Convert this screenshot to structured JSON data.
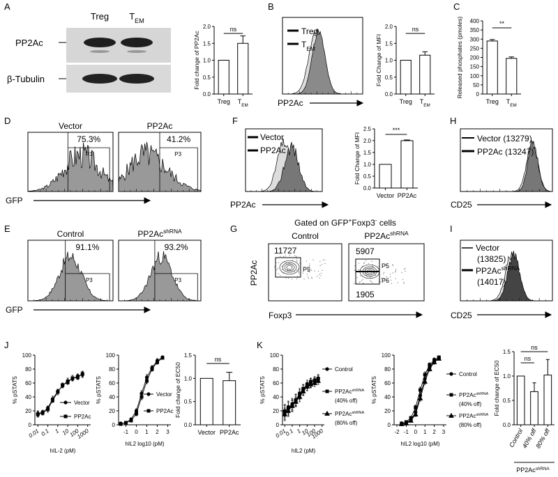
{
  "figure": {
    "A": {
      "letter": "A",
      "lanes": [
        "Treg",
        [
          "T",
          {
            "sub": "EM"
          }
        ]
      ],
      "bands": [
        "PP2Ac",
        "β-Tubulin"
      ],
      "chart": {
        "type": "bar",
        "ylabel": "Fold change of PP2Ac",
        "categories": [
          "Treg",
          [
            "T",
            {
              "sub": "EM"
            }
          ]
        ],
        "values": [
          1.0,
          1.5
        ],
        "errors": [
          null,
          0.22
        ],
        "ylim": [
          0,
          2
        ],
        "yticks": [
          {
            "value": 0,
            "label": "0.0"
          },
          {
            "value": 0.5,
            "label": "0.5"
          },
          {
            "value": 1,
            "label": "1.0"
          },
          {
            "value": 1.5,
            "label": "1.5"
          },
          {
            "value": 2,
            "label": "2.0"
          }
        ],
        "annotations": [
          "ns"
        ]
      }
    },
    "B": {
      "letter": "B",
      "legend": [
        "Treg",
        [
          "T",
          {
            "sub": "EM"
          }
        ]
      ],
      "xlabel": "PP2Ac",
      "chart": {
        "type": "bar",
        "ylabel": "Fold Change of MFI",
        "categories": [
          "Treg",
          [
            "T",
            {
              "sub": "EM"
            }
          ]
        ],
        "values": [
          1.0,
          1.15
        ],
        "errors": [
          null,
          0.1
        ],
        "ylim": [
          0,
          2
        ],
        "yticks": [
          {
            "value": 0,
            "label": "0.0"
          },
          {
            "value": 0.5,
            "label": "0.5"
          },
          {
            "value": 1,
            "label": "1.0"
          },
          {
            "value": 1.5,
            "label": "1.5"
          },
          {
            "value": 2,
            "label": "2.0"
          }
        ],
        "annotations": [
          "ns"
        ]
      }
    },
    "C": {
      "letter": "C",
      "chart": {
        "type": "bar",
        "ylabel": "Released phosphates (pmoles)",
        "categories": [
          "Treg",
          [
            "T",
            {
              "sub": "EM"
            }
          ]
        ],
        "values": [
          290,
          195
        ],
        "errors": [
          8,
          8
        ],
        "ylim": [
          0,
          400
        ],
        "yticks": [
          0,
          50,
          100,
          150,
          200,
          250,
          300,
          350,
          400
        ],
        "annotations": [
          "**"
        ]
      }
    },
    "D": {
      "letter": "D",
      "xlabel": "GFP",
      "plots": [
        {
          "title": "Vector",
          "percent": "75.3%",
          "gate": "P3"
        },
        {
          "title": "PP2Ac",
          "percent": "41.2%",
          "gate": "P3"
        }
      ]
    },
    "E": {
      "letter": "E",
      "xlabel": "GFP",
      "plots": [
        {
          "title": "Control",
          "percent": "91.1%",
          "gate": "P3"
        },
        {
          "title": [
            "PP2Ac",
            {
              "sup": "shRNA"
            }
          ],
          "percent": "93.2%",
          "gate": "P3"
        }
      ]
    },
    "F": {
      "letter": "F",
      "legend": [
        "Vector",
        "PP2Ac"
      ],
      "xlabel": "PP2Ac",
      "chart": {
        "type": "bar",
        "ylabel": "Fold Change of MFI",
        "categories": [
          "Vector",
          "PP2Ac"
        ],
        "values": [
          1.0,
          2.0
        ],
        "errors": [
          null,
          0.03
        ],
        "ylim": [
          0,
          2.5
        ],
        "yticks": [
          {
            "value": 0,
            "label": "0.0"
          },
          {
            "value": 0.5,
            "label": "0.5"
          },
          {
            "value": 1,
            "label": "1.0"
          },
          {
            "value": 1.5,
            "label": "1.5"
          },
          {
            "value": 2,
            "label": "2.0"
          },
          {
            "value": 2.5,
            "label": "2.5"
          }
        ],
        "annotations": [
          "***"
        ]
      }
    },
    "G": {
      "letter": "G",
      "title": [
        "Gated on GFP",
        {
          "sup": "+"
        },
        "Foxp3",
        {
          "sup": "-"
        },
        " cells"
      ],
      "ylabel": "PP2Ac",
      "xlabel": "Foxp3",
      "plots": [
        {
          "title": "Control",
          "counts": [
            11727
          ],
          "gates": [
            "P5"
          ]
        },
        {
          "title": [
            "PP2Ac",
            {
              "sup": "shRNA"
            }
          ],
          "counts": [
            5907,
            1905
          ],
          "gates": [
            "P5",
            "P6"
          ]
        }
      ]
    },
    "H": {
      "letter": "H",
      "legend": [
        "Vector (13279)",
        "PP2Ac (13247)"
      ],
      "xlabel": "CD25"
    },
    "I": {
      "letter": "I",
      "legend": [
        {
          "name": "Vector",
          "mfi": "(13825)"
        },
        {
          "name": [
            "PP2Ac",
            {
              "sup": "shRNA"
            }
          ],
          "mfi": "(14017)"
        }
      ],
      "xlabel": "CD25"
    },
    "J": {
      "letter": "J",
      "charts": [
        {
          "type": "line",
          "xscale": "log",
          "xlabel": "hIL-2 (pM)",
          "ylabel": "% pSTAT5",
          "x": [
            0.01,
            0.03,
            0.1,
            0.3,
            1,
            3,
            10,
            30,
            100,
            300
          ],
          "xlim": [
            0.005,
            2000
          ],
          "xticks": [
            0.01,
            0.1,
            1,
            10,
            100,
            1000
          ],
          "ylim": [
            0,
            100
          ],
          "yticks": [
            0,
            20,
            40,
            60,
            80,
            100
          ],
          "series": [
            {
              "name": "Vector",
              "marker": "circle",
              "values": [
                16,
                18,
                24,
                37,
                48,
                56,
                63,
                66,
                70,
                72
              ],
              "errors": [
                4,
                3,
                3,
                4,
                3,
                3,
                4,
                3,
                3,
                4
              ]
            },
            {
              "name": "PP2Ac",
              "marker": "square",
              "values": [
                15,
                17,
                22,
                35,
                47,
                57,
                61,
                67,
                68,
                73
              ],
              "errors": [
                4,
                3,
                4,
                3,
                4,
                3,
                3,
                4,
                3,
                4
              ]
            }
          ]
        },
        {
          "type": "line",
          "xscale": "linear",
          "xlabel": "hIL2 log10 (pM)",
          "ylabel": "% pSTAT5",
          "x": [
            -1.5,
            -1,
            -0.5,
            0,
            0.5,
            1,
            1.5,
            2,
            2.5
          ],
          "xlim": [
            -1.7,
            3.3
          ],
          "xticks": [
            -1,
            0,
            1,
            2,
            3
          ],
          "ylim": [
            0,
            100
          ],
          "yticks": [
            0,
            20,
            40,
            60,
            80,
            100
          ],
          "series": [
            {
              "name": "Vector",
              "marker": "circle",
              "values": [
                2,
                3,
                8,
                20,
                45,
                68,
                82,
                92,
                97
              ],
              "errors": [
                1,
                1,
                2,
                3,
                4,
                4,
                3,
                3,
                2
              ]
            },
            {
              "name": "PP2Ac",
              "marker": "square",
              "values": [
                1,
                3,
                6,
                16,
                40,
                63,
                80,
                90,
                96
              ],
              "errors": [
                1,
                1,
                2,
                3,
                4,
                4,
                3,
                3,
                2
              ]
            }
          ]
        },
        {
          "type": "bar",
          "ylabel": "Fold change of EC50",
          "categories": [
            "Vector",
            "PP2Ac"
          ],
          "values": [
            1.0,
            0.95
          ],
          "errors": [
            null,
            0.18
          ],
          "ylim": [
            0,
            1.5
          ],
          "yticks": [
            {
              "value": 0,
              "label": "0.0"
            },
            {
              "value": 0.5,
              "label": "0.5"
            },
            {
              "value": 1,
              "label": "1.0"
            },
            {
              "value": 1.5,
              "label": "1.5"
            }
          ],
          "annotations": [
            "ns"
          ]
        }
      ]
    },
    "K": {
      "letter": "K",
      "group_label": [
        "PP2Ac",
        {
          "sup": "shRNA"
        }
      ],
      "charts": [
        {
          "type": "line",
          "xscale": "log",
          "xlabel": "hIL2 (pM)",
          "ylabel": "% pSTAT5",
          "x": [
            0.01,
            0.03,
            0.1,
            0.3,
            1,
            3,
            10,
            30,
            100,
            300
          ],
          "xlim": [
            0.005,
            2000
          ],
          "xticks": [
            0.01,
            0.1,
            1,
            10,
            100,
            1000
          ],
          "ylim": [
            0,
            100
          ],
          "yticks": [
            0,
            20,
            40,
            60,
            80,
            100
          ],
          "series": [
            {
              "name": "Control",
              "marker": "circle",
              "values": [
                20,
                23,
                30,
                36,
                43,
                50,
                55,
                60,
                63,
                67
              ],
              "errors": [
                9,
                9,
                8,
                8,
                7,
                7,
                6,
                6,
                5,
                5
              ]
            },
            {
              "name": [
                "PP2Ac",
                {
                  "sup": "shRNA"
                }
              ],
              "note": "(40% off)",
              "marker": "square",
              "values": [
                18,
                25,
                28,
                35,
                45,
                52,
                58,
                62,
                64,
                66
              ],
              "errors": [
                10,
                9,
                8,
                8,
                7,
                6,
                6,
                5,
                5,
                5
              ]
            },
            {
              "name": [
                "PP2Ac",
                {
                  "sup": "shRNA"
                }
              ],
              "note": "(80% off)",
              "marker": "triangle",
              "values": [
                15,
                20,
                27,
                33,
                40,
                48,
                55,
                58,
                60,
                63
              ],
              "errors": [
                9,
                8,
                8,
                7,
                7,
                6,
                6,
                5,
                5,
                5
              ]
            }
          ]
        },
        {
          "type": "line",
          "xscale": "linear",
          "xlabel": "hIL2 log10 (pM)",
          "ylabel": "% pSTAT5",
          "x": [
            -1.5,
            -1,
            -0.5,
            0,
            0.5,
            1,
            1.5,
            2,
            2.5
          ],
          "xlim": [
            -2.3,
            3.3
          ],
          "xticks": [
            -2,
            -1,
            0,
            1,
            2,
            3
          ],
          "ylim": [
            0,
            100
          ],
          "yticks": [
            0,
            20,
            40,
            60,
            80,
            100
          ],
          "series": [
            {
              "name": "Control",
              "marker": "circle",
              "values": [
                1,
                3,
                7,
                18,
                42,
                66,
                82,
                91,
                96
              ],
              "errors": [
                1,
                1,
                2,
                3,
                4,
                4,
                3,
                3,
                2
              ]
            },
            {
              "name": [
                "PP2Ac",
                {
                  "sup": "shRNA"
                }
              ],
              "note": "(40% off)",
              "marker": "square",
              "values": [
                2,
                4,
                10,
                25,
                50,
                72,
                86,
                93,
                97
              ],
              "errors": [
                1,
                1,
                2,
                3,
                4,
                4,
                3,
                3,
                2
              ]
            },
            {
              "name": [
                "PP2Ac",
                {
                  "sup": "shRNA"
                }
              ],
              "note": "(80% off)",
              "marker": "triangle",
              "values": [
                1,
                2,
                6,
                15,
                38,
                62,
                80,
                90,
                95
              ],
              "errors": [
                1,
                1,
                2,
                3,
                4,
                4,
                3,
                3,
                2
              ]
            }
          ]
        },
        {
          "type": "bar",
          "ylabel": "Fold change of EC50",
          "categories": [
            "Control",
            "40% off",
            "80% off"
          ],
          "values": [
            1.0,
            0.68,
            1.02
          ],
          "errors": [
            null,
            0.18,
            0.32
          ],
          "ylim": [
            0,
            1.5
          ],
          "yticks": [
            {
              "value": 0,
              "label": "0.0"
            },
            {
              "value": 0.5,
              "label": "0.5"
            },
            {
              "value": 1,
              "label": "1.0"
            },
            {
              "value": 1.5,
              "label": "1.5"
            }
          ],
          "annotations": [
            "ns",
            "ns"
          ]
        }
      ]
    }
  }
}
